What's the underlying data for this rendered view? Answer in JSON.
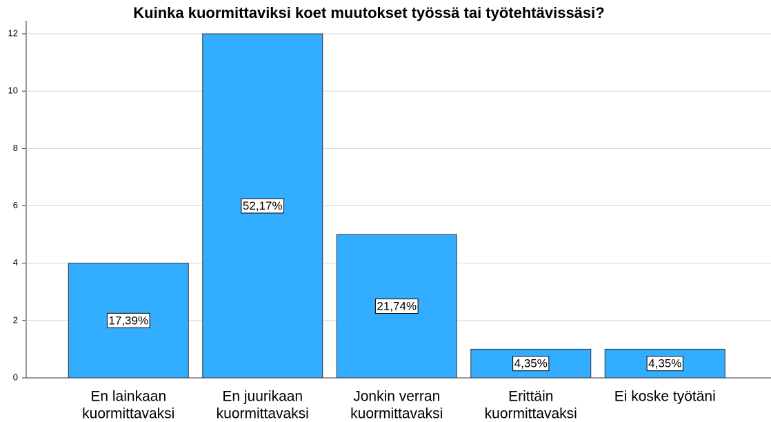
{
  "chart_data": {
    "type": "bar",
    "title": "Kuinka kuormittaviksi koet muutokset työssä tai työtehtävissäsi?",
    "categories": [
      [
        "En lainkaan",
        "kuormittavaksi"
      ],
      [
        "En juurikaan",
        "kuormittavaksi"
      ],
      [
        "Jonkin verran",
        "kuormittavaksi"
      ],
      [
        "Erittäin",
        "kuormittavaksi"
      ],
      [
        "Ei koske työtäni"
      ]
    ],
    "values": [
      4,
      12,
      5,
      1,
      1
    ],
    "data_labels": [
      "17,39%",
      "52,17%",
      "21,74%",
      "4,35%",
      "4,35%"
    ],
    "color": "#33adff",
    "ylim": [
      0,
      12
    ],
    "yticks": [
      0,
      2,
      4,
      6,
      8,
      10,
      12
    ],
    "grid": true
  }
}
